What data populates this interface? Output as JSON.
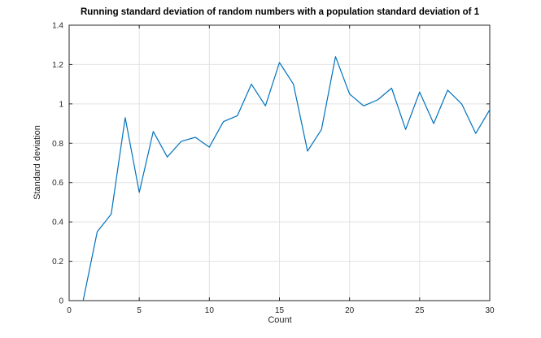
{
  "figure": {
    "background": "#ffffff"
  },
  "chart_data": {
    "type": "line",
    "title": "Running standard deviation of random numbers with a population standard deviation of 1",
    "xlabel": "Count",
    "ylabel": "Standard deviation",
    "x": [
      1,
      2,
      3,
      4,
      5,
      6,
      7,
      8,
      9,
      10,
      11,
      12,
      13,
      14,
      15,
      16,
      17,
      18,
      19,
      20,
      21,
      22,
      23,
      24,
      25,
      26,
      27,
      28,
      29,
      30
    ],
    "values": [
      0.0,
      0.35,
      0.44,
      0.93,
      0.55,
      0.86,
      0.73,
      0.81,
      0.83,
      0.78,
      0.91,
      0.94,
      1.1,
      0.99,
      1.21,
      1.1,
      0.76,
      0.87,
      1.24,
      1.05,
      0.99,
      1.02,
      1.08,
      0.87,
      1.06,
      0.9,
      1.07,
      1.0,
      0.85,
      0.97
    ],
    "xlim": [
      0,
      30
    ],
    "ylim": [
      0,
      1.4
    ],
    "xticks": [
      0,
      5,
      10,
      15,
      20,
      25,
      30
    ],
    "xtick_labels": [
      "0",
      "5",
      "10",
      "15",
      "20",
      "25",
      "30"
    ],
    "yticks": [
      0,
      0.2,
      0.4,
      0.6,
      0.8,
      1.0,
      1.2,
      1.4
    ],
    "ytick_labels": [
      "0",
      "0.2",
      "0.4",
      "0.6",
      "0.8",
      "1",
      "1.2",
      "1.4"
    ],
    "grid": true,
    "legend": "none",
    "line_color": "#0072BD",
    "grid_color": "#e2e2e2",
    "axis_color": "#262626",
    "tick_label_color": "#262626"
  }
}
